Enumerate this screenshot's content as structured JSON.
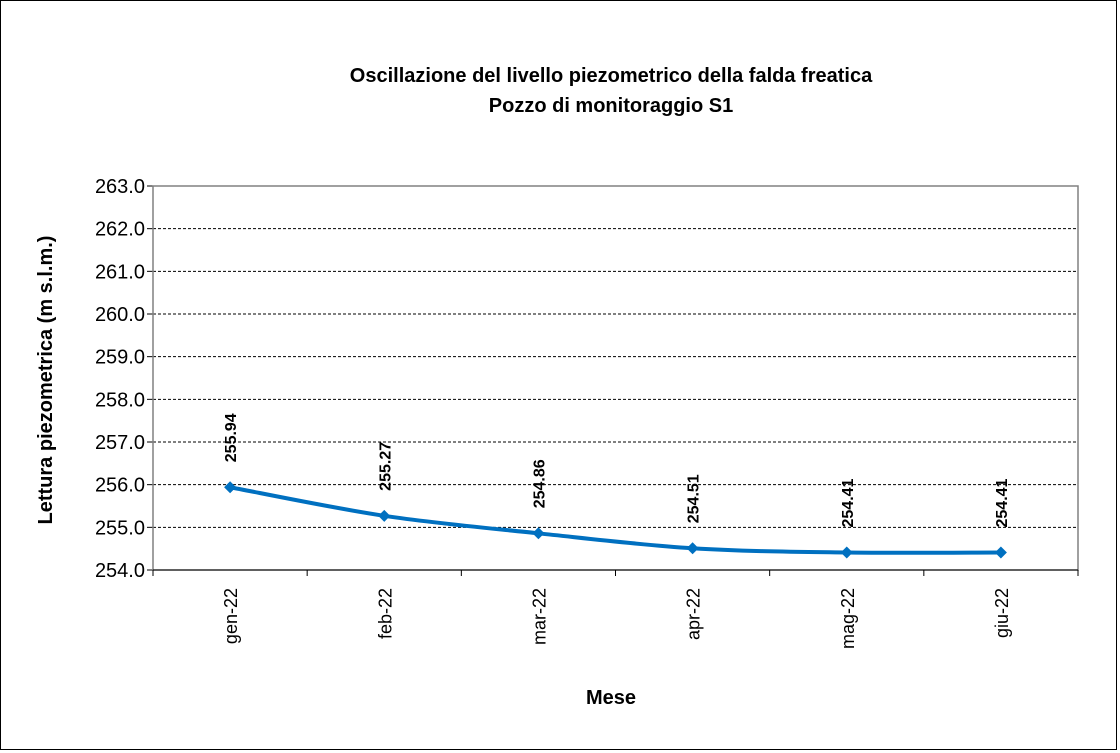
{
  "chart_data": {
    "type": "line",
    "title": "Oscillazione del livello piezometrico della falda freatica",
    "subtitle": "Pozzo di monitoraggio S1",
    "x_label": "Mese",
    "y_label": "Lettura piezometrica (m s.l.m.)",
    "categories": [
      "gen-22",
      "feb-22",
      "mar-22",
      "apr-22",
      "mag-22",
      "giu-22"
    ],
    "series": [
      {
        "name": "S1",
        "color": "#0070c0",
        "values": [
          255.94,
          255.27,
          254.86,
          254.51,
          254.41,
          254.41
        ]
      }
    ],
    "ylim": [
      254,
      263
    ],
    "yticks": [
      {
        "value": 254,
        "label": "254.0"
      },
      {
        "value": 255,
        "label": "255.0"
      },
      {
        "value": 256,
        "label": "256.0"
      },
      {
        "value": 257,
        "label": "257.0"
      },
      {
        "value": 258,
        "label": "258.0"
      },
      {
        "value": 259,
        "label": "259.0"
      },
      {
        "value": 260,
        "label": "260.0"
      },
      {
        "value": 261,
        "label": "261.0"
      },
      {
        "value": 262,
        "label": "262.0"
      },
      {
        "value": 263,
        "label": "263.0"
      }
    ],
    "grid": true,
    "smooth": true,
    "markers": "diamond"
  }
}
